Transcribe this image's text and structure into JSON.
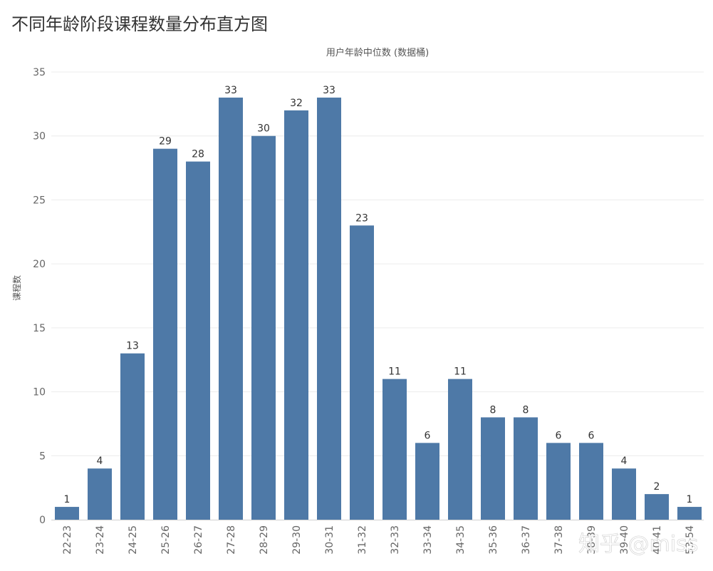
{
  "chart_data": {
    "type": "bar",
    "title": "不同年龄阶段课程数量分布直方图",
    "xlabel": "用户年龄中位数 (数据桶)",
    "ylabel": "课程数",
    "categories": [
      "22-23",
      "23-24",
      "24-25",
      "25-26",
      "26-27",
      "27-28",
      "28-29",
      "29-30",
      "30-31",
      "31-32",
      "32-33",
      "33-34",
      "34-35",
      "35-36",
      "36-37",
      "37-38",
      "38-39",
      "39-40",
      "40-41",
      "53-54"
    ],
    "values": [
      1,
      4,
      13,
      29,
      28,
      33,
      30,
      32,
      33,
      23,
      11,
      6,
      11,
      8,
      8,
      6,
      6,
      4,
      2,
      1
    ],
    "ylim": [
      0,
      35
    ],
    "yticks": [
      0,
      5,
      10,
      15,
      20,
      25,
      30,
      35
    ],
    "grid": true,
    "bar_color": "#4e79a7"
  },
  "watermark": "知乎 @miss"
}
